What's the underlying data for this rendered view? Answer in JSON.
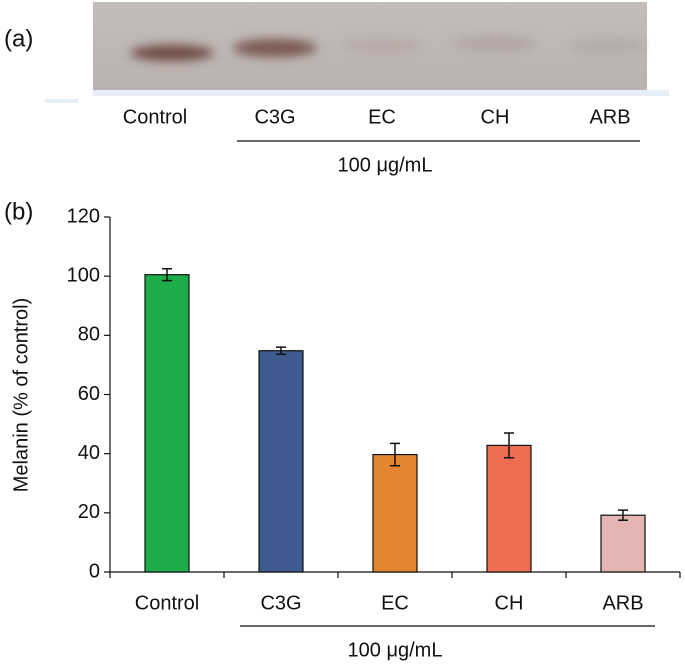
{
  "panels": {
    "a": "(a)",
    "b": "(b)"
  },
  "gel": {
    "lanes": [
      "Control",
      "C3G",
      "EC",
      "CH",
      "ARB"
    ],
    "group_label": "100 μg/mL"
  },
  "chart_data": {
    "type": "bar",
    "y_label": "Melanin (% of control)",
    "categories": [
      "Control",
      "C3G",
      "EC",
      "CH",
      "ARB"
    ],
    "group_label": "100 μg/mL",
    "values": [
      100.5,
      74.8,
      39.7,
      42.8,
      19.2
    ],
    "errors": [
      2.0,
      1.2,
      3.8,
      4.2,
      1.7
    ],
    "colors": [
      "#1fad4b",
      "#3f5a8e",
      "#e3862f",
      "#ec6d4f",
      "#e3b5b3"
    ],
    "ylim": [
      0,
      120
    ],
    "yticks": [
      0,
      20,
      40,
      60,
      80,
      100,
      120
    ]
  }
}
